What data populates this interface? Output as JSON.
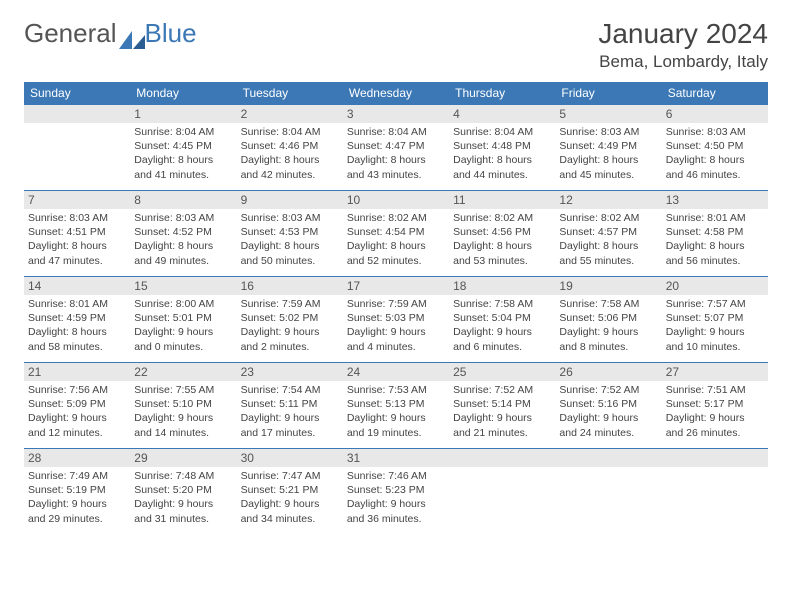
{
  "logo": {
    "text_part1": "General",
    "text_part2": "Blue",
    "accent_color": "#3b78b5"
  },
  "header": {
    "month_title": "January 2024",
    "location": "Bema, Lombardy, Italy"
  },
  "calendar": {
    "day_names": [
      "Sunday",
      "Monday",
      "Tuesday",
      "Wednesday",
      "Thursday",
      "Friday",
      "Saturday"
    ],
    "header_bg": "#3b78b5",
    "header_fg": "#ffffff",
    "daynum_bg": "#e8e8e8",
    "border_color": "#3b78b5",
    "start_offset": 1,
    "days": [
      {
        "n": 1,
        "sunrise": "8:04 AM",
        "sunset": "4:45 PM",
        "daylight": "8 hours and 41 minutes."
      },
      {
        "n": 2,
        "sunrise": "8:04 AM",
        "sunset": "4:46 PM",
        "daylight": "8 hours and 42 minutes."
      },
      {
        "n": 3,
        "sunrise": "8:04 AM",
        "sunset": "4:47 PM",
        "daylight": "8 hours and 43 minutes."
      },
      {
        "n": 4,
        "sunrise": "8:04 AM",
        "sunset": "4:48 PM",
        "daylight": "8 hours and 44 minutes."
      },
      {
        "n": 5,
        "sunrise": "8:03 AM",
        "sunset": "4:49 PM",
        "daylight": "8 hours and 45 minutes."
      },
      {
        "n": 6,
        "sunrise": "8:03 AM",
        "sunset": "4:50 PM",
        "daylight": "8 hours and 46 minutes."
      },
      {
        "n": 7,
        "sunrise": "8:03 AM",
        "sunset": "4:51 PM",
        "daylight": "8 hours and 47 minutes."
      },
      {
        "n": 8,
        "sunrise": "8:03 AM",
        "sunset": "4:52 PM",
        "daylight": "8 hours and 49 minutes."
      },
      {
        "n": 9,
        "sunrise": "8:03 AM",
        "sunset": "4:53 PM",
        "daylight": "8 hours and 50 minutes."
      },
      {
        "n": 10,
        "sunrise": "8:02 AM",
        "sunset": "4:54 PM",
        "daylight": "8 hours and 52 minutes."
      },
      {
        "n": 11,
        "sunrise": "8:02 AM",
        "sunset": "4:56 PM",
        "daylight": "8 hours and 53 minutes."
      },
      {
        "n": 12,
        "sunrise": "8:02 AM",
        "sunset": "4:57 PM",
        "daylight": "8 hours and 55 minutes."
      },
      {
        "n": 13,
        "sunrise": "8:01 AM",
        "sunset": "4:58 PM",
        "daylight": "8 hours and 56 minutes."
      },
      {
        "n": 14,
        "sunrise": "8:01 AM",
        "sunset": "4:59 PM",
        "daylight": "8 hours and 58 minutes."
      },
      {
        "n": 15,
        "sunrise": "8:00 AM",
        "sunset": "5:01 PM",
        "daylight": "9 hours and 0 minutes."
      },
      {
        "n": 16,
        "sunrise": "7:59 AM",
        "sunset": "5:02 PM",
        "daylight": "9 hours and 2 minutes."
      },
      {
        "n": 17,
        "sunrise": "7:59 AM",
        "sunset": "5:03 PM",
        "daylight": "9 hours and 4 minutes."
      },
      {
        "n": 18,
        "sunrise": "7:58 AM",
        "sunset": "5:04 PM",
        "daylight": "9 hours and 6 minutes."
      },
      {
        "n": 19,
        "sunrise": "7:58 AM",
        "sunset": "5:06 PM",
        "daylight": "9 hours and 8 minutes."
      },
      {
        "n": 20,
        "sunrise": "7:57 AM",
        "sunset": "5:07 PM",
        "daylight": "9 hours and 10 minutes."
      },
      {
        "n": 21,
        "sunrise": "7:56 AM",
        "sunset": "5:09 PM",
        "daylight": "9 hours and 12 minutes."
      },
      {
        "n": 22,
        "sunrise": "7:55 AM",
        "sunset": "5:10 PM",
        "daylight": "9 hours and 14 minutes."
      },
      {
        "n": 23,
        "sunrise": "7:54 AM",
        "sunset": "5:11 PM",
        "daylight": "9 hours and 17 minutes."
      },
      {
        "n": 24,
        "sunrise": "7:53 AM",
        "sunset": "5:13 PM",
        "daylight": "9 hours and 19 minutes."
      },
      {
        "n": 25,
        "sunrise": "7:52 AM",
        "sunset": "5:14 PM",
        "daylight": "9 hours and 21 minutes."
      },
      {
        "n": 26,
        "sunrise": "7:52 AM",
        "sunset": "5:16 PM",
        "daylight": "9 hours and 24 minutes."
      },
      {
        "n": 27,
        "sunrise": "7:51 AM",
        "sunset": "5:17 PM",
        "daylight": "9 hours and 26 minutes."
      },
      {
        "n": 28,
        "sunrise": "7:49 AM",
        "sunset": "5:19 PM",
        "daylight": "9 hours and 29 minutes."
      },
      {
        "n": 29,
        "sunrise": "7:48 AM",
        "sunset": "5:20 PM",
        "daylight": "9 hours and 31 minutes."
      },
      {
        "n": 30,
        "sunrise": "7:47 AM",
        "sunset": "5:21 PM",
        "daylight": "9 hours and 34 minutes."
      },
      {
        "n": 31,
        "sunrise": "7:46 AM",
        "sunset": "5:23 PM",
        "daylight": "9 hours and 36 minutes."
      }
    ],
    "labels": {
      "sunrise": "Sunrise:",
      "sunset": "Sunset:",
      "daylight": "Daylight:"
    }
  }
}
